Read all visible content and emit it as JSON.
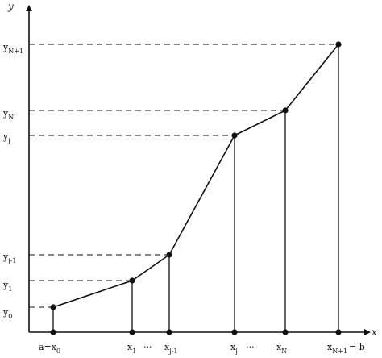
{
  "axes": {
    "x_name": "x",
    "y_name": "y",
    "ellipsis": "···"
  },
  "points": [
    {
      "x": {
        "base": "a=x",
        "sub": "0"
      },
      "y": {
        "base": "y",
        "sub": "0"
      }
    },
    {
      "x": {
        "base": "x",
        "sub": "1"
      },
      "y": {
        "base": "y",
        "sub": "1"
      }
    },
    {
      "x": {
        "base": "x",
        "sub": "j-1"
      },
      "y": {
        "base": "y",
        "sub": "j-1"
      }
    },
    {
      "x": {
        "base": "x",
        "sub": "j"
      },
      "y": {
        "base": "y",
        "sub": "j"
      }
    },
    {
      "x": {
        "base": "x",
        "sub": "N"
      },
      "y": {
        "base": "y",
        "sub": "N"
      }
    },
    {
      "x": {
        "base": "x",
        "sub": "N+1",
        "suffix": "= b"
      },
      "y": {
        "base": "y",
        "sub": "N+1"
      }
    }
  ]
}
